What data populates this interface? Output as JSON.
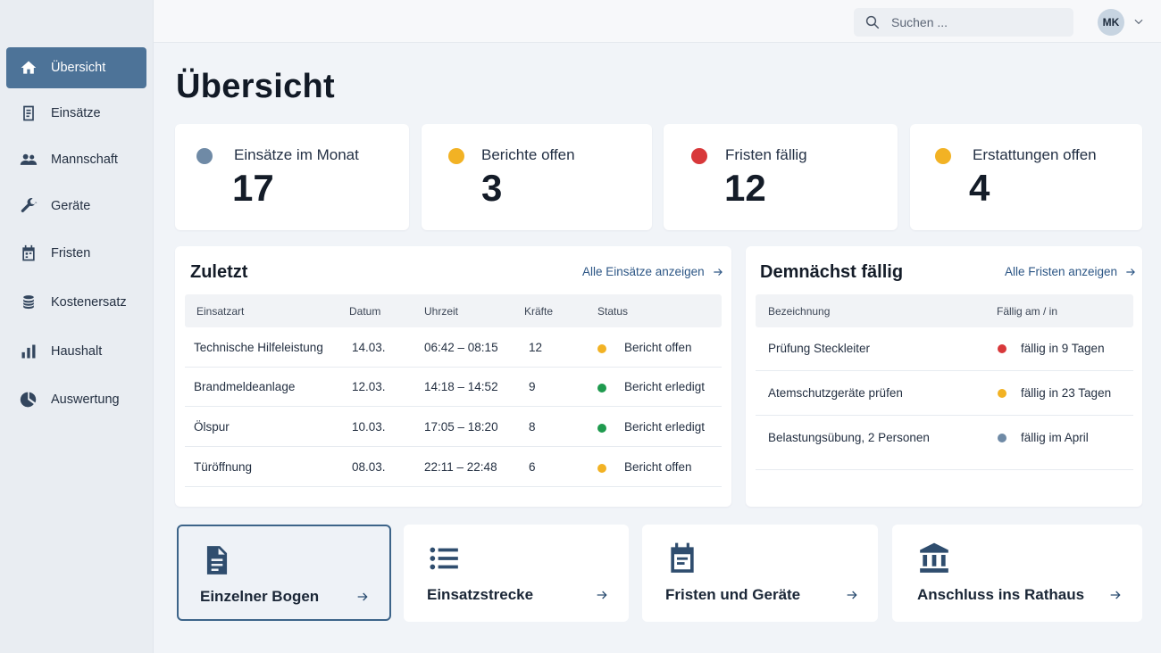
{
  "sidebar": {
    "items": [
      {
        "label": "Übersicht",
        "icon": "home-icon"
      },
      {
        "label": "Einsätze",
        "icon": "document-icon"
      },
      {
        "label": "Mannschaft",
        "icon": "people-icon"
      },
      {
        "label": "Geräte",
        "icon": "wrench-icon"
      },
      {
        "label": "Fristen",
        "icon": "calendar-icon"
      },
      {
        "label": "Kostenersatz",
        "icon": "coins-icon"
      },
      {
        "label": "Haushalt",
        "icon": "bar-chart-icon"
      },
      {
        "label": "Auswertung",
        "icon": "pie-chart-icon"
      }
    ]
  },
  "topbar": {
    "search_placeholder": "Suchen ...",
    "user_initials": "MK"
  },
  "page": {
    "title": "Übersicht"
  },
  "stats": [
    {
      "label": "Einsätze im Monat",
      "value": "17",
      "color": "#6f8aa6"
    },
    {
      "label": "Berichte offen",
      "value": "3",
      "color": "#f2b224"
    },
    {
      "label": "Fristen fällig",
      "value": "12",
      "color": "#d8383a"
    },
    {
      "label": "Erstattungen offen",
      "value": "4",
      "color": "#f2b224"
    }
  ],
  "recent": {
    "title": "Zuletzt",
    "link": "Alle Einsätze anzeigen",
    "columns": [
      "Einsatzart",
      "Datum",
      "Uhrzeit",
      "Kräfte",
      "Status"
    ],
    "rows": [
      {
        "type": "Technische Hilfeleistung",
        "date": "14.03.",
        "time": "06:42 – 08:15",
        "crew": "12",
        "status": "Bericht offen",
        "status_color": "#f2b224"
      },
      {
        "type": "Brandmeldeanlage",
        "date": "12.03.",
        "time": "14:18 – 14:52",
        "crew": "9",
        "status": "Bericht erledigt",
        "status_color": "#1f9a4e"
      },
      {
        "type": "Ölspur",
        "date": "10.03.",
        "time": "17:05 – 18:20",
        "crew": "8",
        "status": "Bericht erledigt",
        "status_color": "#1f9a4e"
      },
      {
        "type": "Türöffnung",
        "date": "08.03.",
        "time": "22:11 – 22:48",
        "crew": "6",
        "status": "Bericht offen",
        "status_color": "#f2b224"
      }
    ]
  },
  "upcoming": {
    "title": "Demnächst fällig",
    "link": "Alle Fristen anzeigen",
    "columns": [
      "Bezeichnung",
      "Fällig am / in"
    ],
    "rows": [
      {
        "name": "Prüfung Steckleiter",
        "due": "fällig in 9 Tagen",
        "color": "#d8383a"
      },
      {
        "name": "Atemschutzgeräte prüfen",
        "due": "fällig in 23 Tagen",
        "color": "#f2b224"
      },
      {
        "name": "Belastungsübung, 2 Personen",
        "due": "fällig im April",
        "color": "#6f8aa6"
      }
    ]
  },
  "actions": [
    {
      "label": "Einzelner Bogen",
      "icon": "form-icon"
    },
    {
      "label": "Einsatzstrecke",
      "icon": "list-icon"
    },
    {
      "label": "Fristen und Geräte",
      "icon": "calendar-icon"
    },
    {
      "label": "Anschluss ins Rathaus",
      "icon": "town-hall-icon"
    }
  ]
}
